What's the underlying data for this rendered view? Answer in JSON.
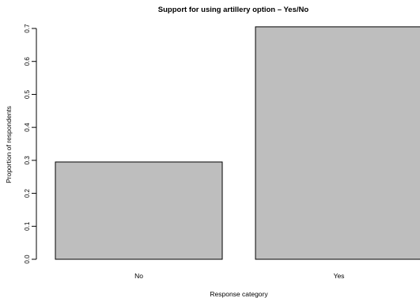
{
  "chart_data": {
    "type": "bar",
    "title": "Support for using artillery option – Yes/No",
    "xlabel": "Response category",
    "ylabel": "Proportion of respondents",
    "categories": [
      "No",
      "Yes"
    ],
    "values": [
      0.295,
      0.705
    ],
    "ylim": [
      0,
      0.7
    ],
    "yticks": [
      "0.0",
      "0.1",
      "0.2",
      "0.3",
      "0.4",
      "0.5",
      "0.6",
      "0.7"
    ],
    "grid": false,
    "legend": "none",
    "bar_color": "#bebebe",
    "bar_border_color": "#000000"
  }
}
